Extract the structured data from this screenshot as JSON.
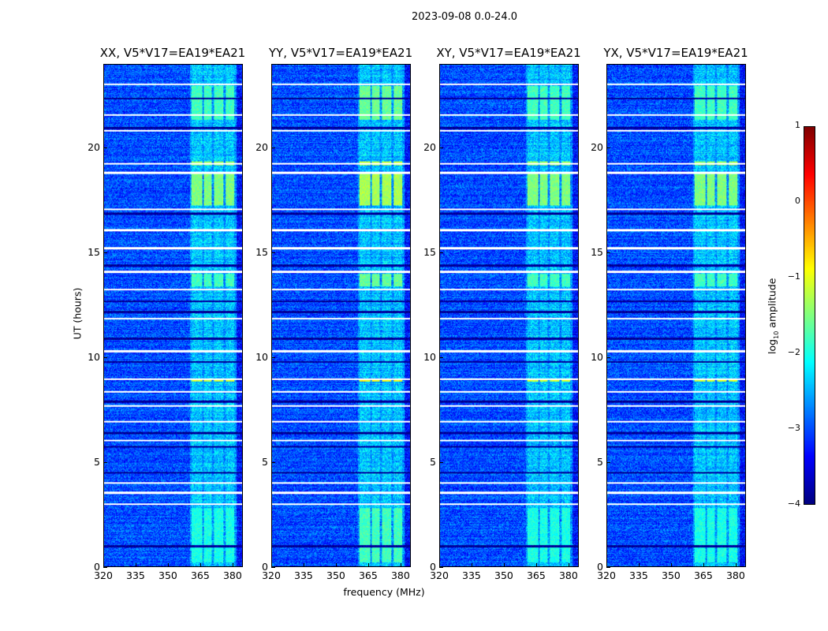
{
  "figure_title": "2023-09-08 0.0-24.0",
  "chart_data": {
    "type": "heatmap",
    "panels": [
      {
        "title": "XX, V5*V17=EA19*EA21"
      },
      {
        "title": "YY, V5*V17=EA19*EA21"
      },
      {
        "title": "XY, V5*V17=EA19*EA21"
      },
      {
        "title": "YX, V5*V17=EA19*EA21"
      }
    ],
    "xlabel": "frequency (MHz)",
    "ylabel": "UT (hours)",
    "xlim": [
      320,
      384.8
    ],
    "ylim": [
      0,
      24
    ],
    "xticks": [
      "320",
      "335",
      "350",
      "365",
      "380"
    ],
    "xtick_values": [
      320,
      335,
      350,
      365,
      380
    ],
    "yticks": [
      "0",
      "5",
      "10",
      "15",
      "20"
    ],
    "ytick_values": [
      0,
      5,
      10,
      15,
      20
    ],
    "colorbar": {
      "label": "amplitude",
      "label_prefix": "log",
      "label_sub": "10",
      "range": [
        -4,
        1
      ],
      "ticks": [
        "−4",
        "−3",
        "−2",
        "−1",
        "0",
        "1"
      ],
      "tick_values": [
        -4,
        -3,
        -2,
        -1,
        0,
        1
      ],
      "colormap": "jet"
    },
    "background_level": -3.0,
    "rfi_subbands_mhz": [
      [
        361,
        365.9
      ],
      [
        366.6,
        370.2
      ],
      [
        371.3,
        375.7
      ],
      [
        376.8,
        381
      ]
    ],
    "bright_intervals_ut": [
      {
        "range": [
          0.2,
          2.8
        ],
        "level": -2.0
      },
      {
        "range": [
          8.85,
          9.0
        ],
        "level": -1.1
      },
      {
        "range": [
          13.4,
          14.0
        ],
        "level": -1.8
      },
      {
        "range": [
          17.3,
          18.8
        ],
        "level": -1.5
      },
      {
        "range": [
          19.2,
          19.4
        ],
        "level": -1.4
      },
      {
        "range": [
          21.4,
          23.0
        ],
        "level": -1.8
      }
    ],
    "flagged_times_ut": [
      23.08,
      21.6,
      20.86,
      19.29,
      18.84,
      17.1,
      16.1,
      15.23,
      14.1,
      13.25,
      11.86,
      10.3,
      8.97,
      8.37,
      7.7,
      6.95,
      6.04,
      4.0,
      3.53,
      3.0
    ],
    "dark_times_ut": [
      0.98,
      4.5,
      5.74,
      6.4,
      7.9,
      9.8,
      10.9,
      12.2,
      12.7,
      14.4,
      16.9,
      21.0,
      22.4
    ]
  }
}
